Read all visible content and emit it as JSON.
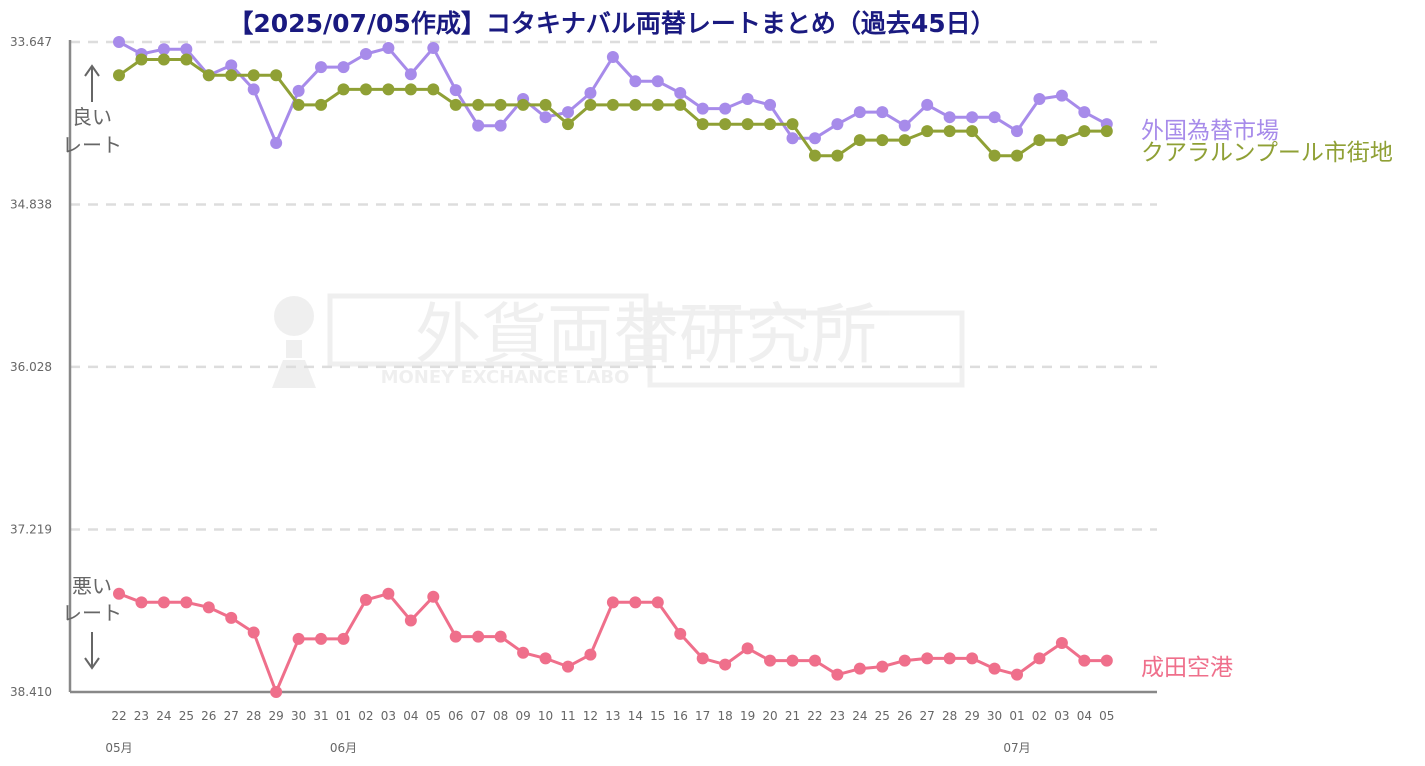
{
  "chart_data": {
    "type": "line",
    "title": "【2025/07/05作成】コタキナバル両替レートまとめ（過去45日）",
    "ylim": [
      33.647,
      38.41
    ],
    "y_inverted": true,
    "y_ticks": [
      "33.647",
      "34.838",
      "36.028",
      "37.219",
      "38.410"
    ],
    "grid": true,
    "legend_placement": "right, at end of each line",
    "annotation_good": [
      "良い",
      "レート"
    ],
    "annotation_bad": [
      "悪い",
      "レート"
    ],
    "watermark": {
      "main": "外貨両替研究所",
      "sub": "MONEY EXCHANCE LABO"
    },
    "x": [
      "22",
      "23",
      "24",
      "25",
      "26",
      "27",
      "28",
      "29",
      "30",
      "31",
      "01",
      "02",
      "03",
      "04",
      "05",
      "06",
      "07",
      "08",
      "09",
      "10",
      "11",
      "12",
      "13",
      "14",
      "15",
      "16",
      "17",
      "18",
      "19",
      "20",
      "21",
      "22",
      "23",
      "24",
      "25",
      "26",
      "27",
      "28",
      "29",
      "30",
      "01",
      "02",
      "03",
      "04",
      "05"
    ],
    "month_labels": [
      {
        "index": 0,
        "label": "05月"
      },
      {
        "index": 10,
        "label": "06月"
      },
      {
        "index": 40,
        "label": "07月"
      }
    ],
    "series": [
      {
        "name": "外国為替市場",
        "color": "#a78bea",
        "values": [
          33.647,
          33.735,
          33.7,
          33.7,
          33.891,
          33.818,
          33.994,
          34.387,
          34.005,
          33.831,
          33.831,
          33.735,
          33.691,
          33.883,
          33.691,
          34.0,
          34.26,
          34.26,
          34.065,
          34.198,
          34.161,
          34.021,
          33.757,
          33.935,
          33.935,
          34.021,
          34.135,
          34.135,
          34.065,
          34.108,
          34.352,
          34.352,
          34.249,
          34.161,
          34.161,
          34.26,
          34.108,
          34.198,
          34.198,
          34.198,
          34.3,
          34.065,
          34.04,
          34.161,
          34.249
        ]
      },
      {
        "name": "クアラルンプール市街地",
        "color": "#8fa035",
        "values": [
          33.891,
          33.775,
          33.775,
          33.775,
          33.891,
          33.891,
          33.891,
          33.891,
          34.108,
          34.108,
          33.994,
          33.994,
          33.994,
          33.994,
          33.994,
          34.108,
          34.108,
          34.108,
          34.108,
          34.108,
          34.249,
          34.108,
          34.108,
          34.108,
          34.108,
          34.108,
          34.249,
          34.249,
          34.249,
          34.249,
          34.249,
          34.48,
          34.48,
          34.366,
          34.366,
          34.366,
          34.3,
          34.3,
          34.3,
          34.48,
          34.48,
          34.366,
          34.366,
          34.3,
          34.3
        ]
      },
      {
        "name": "成田空港",
        "color": "#ef6f8b",
        "values": [
          37.69,
          37.753,
          37.753,
          37.753,
          37.79,
          37.867,
          37.974,
          38.41,
          38.021,
          38.021,
          38.021,
          37.735,
          37.69,
          37.886,
          37.712,
          38.004,
          38.004,
          38.004,
          38.122,
          38.164,
          38.224,
          38.136,
          37.753,
          37.753,
          37.753,
          37.984,
          38.164,
          38.209,
          38.09,
          38.18,
          38.18,
          38.18,
          38.283,
          38.239,
          38.224,
          38.18,
          38.164,
          38.164,
          38.164,
          38.239,
          38.283,
          38.164,
          38.051,
          38.18,
          38.18
        ]
      }
    ]
  }
}
